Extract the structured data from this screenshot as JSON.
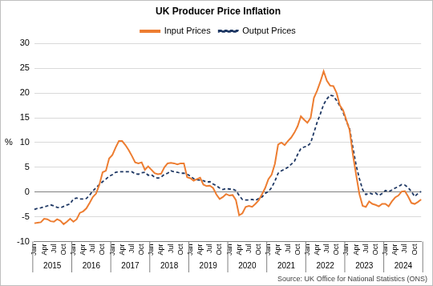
{
  "chart_data": {
    "type": "line",
    "title": "UK Producer Price Inflation",
    "y_label": "%",
    "source": "Source: UK Office for National Statistics (ONS)",
    "legend": "top",
    "grid": true,
    "ylim": [
      -10,
      30
    ],
    "yticks": [
      -10,
      -5,
      0,
      5,
      10,
      15,
      20,
      25,
      30
    ],
    "x_groups": [
      {
        "label": "2015",
        "count": 12
      },
      {
        "label": "2016",
        "count": 12
      },
      {
        "label": "2017",
        "count": 12
      },
      {
        "label": "2018",
        "count": 12
      },
      {
        "label": "2019",
        "count": 12
      },
      {
        "label": "2020",
        "count": 12
      },
      {
        "label": "2021",
        "count": 12
      },
      {
        "label": "2022",
        "count": 12
      },
      {
        "label": "2023",
        "count": 12
      },
      {
        "label": "2024",
        "count": 12
      }
    ],
    "categories": [
      "Jan",
      null,
      null,
      "Apr",
      null,
      null,
      "Jul",
      null,
      null,
      "Oct",
      null,
      null,
      "Jan",
      null,
      null,
      "Apr",
      null,
      null,
      "Jul",
      null,
      null,
      "Oct",
      null,
      null,
      "Jan",
      null,
      null,
      "Apr",
      null,
      null,
      "Jul",
      null,
      null,
      "Oct",
      null,
      null,
      "Jan",
      null,
      null,
      "Apr",
      null,
      null,
      "Jul",
      null,
      null,
      "Oct",
      null,
      null,
      "Jan",
      null,
      null,
      "Apr",
      null,
      null,
      "Jul",
      null,
      null,
      "Oct",
      null,
      null,
      "Jan",
      null,
      null,
      "Apr",
      null,
      null,
      "Jul",
      null,
      null,
      "Oct",
      null,
      null,
      "Jan",
      null,
      null,
      "Apr",
      null,
      null,
      "Jul",
      null,
      null,
      "Oct",
      null,
      null,
      "Jan",
      null,
      null,
      "Apr",
      null,
      null,
      "Jul",
      null,
      null,
      "Oct",
      null,
      null,
      "Jan",
      null,
      null,
      "Apr",
      null,
      null,
      "Jul",
      null,
      null,
      "Oct",
      null,
      null,
      "Jan",
      null,
      null,
      "Apr",
      null,
      null,
      "Jul",
      null,
      null,
      "Oct",
      null,
      null
    ],
    "series": [
      {
        "name": "Input Prices",
        "color": "#ed7d31",
        "line_style": "solid",
        "values": [
          -6.3,
          -6.2,
          -6.1,
          -5.4,
          -5.5,
          -5.9,
          -6.0,
          -5.5,
          -5.8,
          -6.5,
          -6.0,
          -5.4,
          -6.0,
          -5.5,
          -4.2,
          -3.9,
          -3.3,
          -2.2,
          -1.0,
          -0.3,
          1.5,
          4.0,
          4.3,
          6.8,
          7.5,
          9.0,
          10.3,
          10.3,
          9.5,
          8.5,
          7.3,
          6.0,
          5.8,
          6.0,
          4.5,
          5.2,
          4.5,
          3.8,
          3.6,
          3.7,
          5.0,
          5.8,
          5.9,
          5.8,
          5.6,
          5.8,
          5.8,
          3.0,
          2.8,
          2.3,
          2.6,
          2.9,
          1.5,
          1.2,
          1.3,
          0.8,
          -0.5,
          -1.4,
          -1.0,
          -0.4,
          -0.7,
          -0.6,
          -1.6,
          -4.7,
          -4.3,
          -3.0,
          -2.8,
          -3.0,
          -2.4,
          -1.7,
          -0.5,
          0.8,
          2.6,
          3.5,
          5.7,
          9.6,
          10.0,
          9.5,
          10.3,
          11.0,
          12.0,
          13.3,
          15.3,
          14.6,
          14.0,
          15.0,
          19.0,
          20.5,
          22.3,
          24.4,
          22.5,
          21.5,
          21.4,
          20.0,
          17.5,
          16.5,
          14.5,
          12.5,
          7.6,
          3.5,
          -0.4,
          -2.8,
          -3.0,
          -1.9,
          -2.4,
          -2.6,
          -2.9,
          -2.4,
          -2.4,
          -2.9,
          -1.9,
          -1.1,
          -0.7,
          0.1,
          0.2,
          -0.9,
          -2.2,
          -2.4,
          -2.0,
          -1.5
        ]
      },
      {
        "name": "Output Prices",
        "color": "#1f3864",
        "line_style": "dashed",
        "values": [
          -3.5,
          -3.3,
          -3.2,
          -3.0,
          -2.8,
          -2.6,
          -2.8,
          -3.1,
          -3.2,
          -2.9,
          -2.6,
          -2.4,
          -1.4,
          -1.2,
          -1.4,
          -1.4,
          -1.3,
          -0.6,
          0.2,
          0.9,
          1.5,
          2.1,
          2.6,
          3.2,
          3.5,
          4.0,
          4.1,
          4.1,
          4.1,
          4.1,
          4.1,
          3.7,
          3.6,
          3.9,
          4.0,
          3.4,
          3.5,
          3.0,
          2.8,
          3.0,
          3.6,
          3.8,
          4.3,
          4.1,
          4.0,
          3.8,
          3.8,
          3.6,
          3.2,
          2.7,
          2.5,
          2.4,
          2.3,
          2.0,
          2.1,
          1.6,
          1.3,
          0.8,
          0.5,
          0.7,
          0.6,
          0.6,
          0.3,
          -0.7,
          -1.5,
          -1.6,
          -1.6,
          -1.5,
          -1.7,
          -1.3,
          -1.0,
          -0.3,
          0.1,
          0.9,
          2.2,
          3.8,
          4.3,
          4.6,
          5.0,
          5.6,
          6.2,
          7.6,
          8.8,
          9.1,
          9.3,
          9.9,
          12.0,
          14.1,
          15.8,
          17.7,
          18.8,
          19.6,
          19.4,
          18.5,
          17.4,
          16.1,
          14.3,
          12.8,
          9.0,
          5.4,
          2.7,
          0.5,
          -0.5,
          -0.2,
          -0.4,
          -0.2,
          -0.7,
          -0.3,
          0.3,
          0.1,
          0.4,
          0.8,
          1.1,
          1.5,
          1.4,
          0.9,
          0.1,
          -0.9,
          -0.3,
          0.1
        ]
      }
    ]
  }
}
